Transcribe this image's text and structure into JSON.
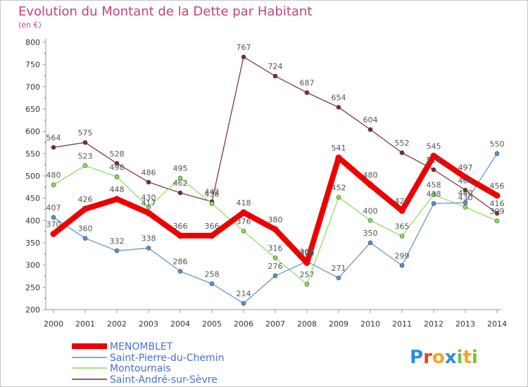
{
  "chart_data": {
    "type": "line",
    "title": "Evolution du Montant de la Dette par Habitant",
    "subtitle": "(en €)",
    "xlabel": "",
    "ylabel": "",
    "ylim": [
      200,
      800
    ],
    "yticks": [
      200,
      250,
      300,
      350,
      400,
      450,
      500,
      550,
      600,
      650,
      700,
      750,
      800
    ],
    "categories": [
      "2000",
      "2001",
      "2002",
      "2003",
      "2004",
      "2005",
      "2006",
      "2007",
      "2008",
      "2009",
      "2010",
      "2011",
      "2012",
      "2013",
      "2014"
    ],
    "grid": false,
    "legend_position": "bottom-left",
    "series": [
      {
        "name": "MENOMBLET",
        "color": "#ee0000",
        "values": [
          370,
          426,
          448,
          417,
          366,
          366,
          418,
          380,
          305,
          541,
          480,
          422,
          545,
          497,
          456
        ]
      },
      {
        "name": "Saint-Pierre-du-Chemin",
        "color": "#5a8fd0",
        "values": [
          407,
          360,
          332,
          338,
          286,
          258,
          214,
          276,
          308,
          271,
          350,
          299,
          438,
          440,
          550
        ]
      },
      {
        "name": "Montournais",
        "color": "#88dd55",
        "values": [
          480,
          523,
          498,
          430,
          495,
          438,
          376,
          316,
          257,
          452,
          400,
          365,
          458,
          430,
          399
        ]
      },
      {
        "name": "Saint-André-sur-Sèvre",
        "color": "#7a2a2a",
        "values": [
          564,
          575,
          528,
          486,
          462,
          442,
          767,
          724,
          687,
          654,
          604,
          552,
          514,
          468,
          416
        ]
      }
    ]
  },
  "logo": {
    "text": "Proxiti",
    "letters": [
      "P",
      "r",
      "o",
      "x",
      "i",
      "t",
      "i"
    ],
    "colors": [
      "#2b8fd6",
      "#e8421f",
      "#f5a623",
      "#2b8fd6",
      "#7bc043",
      "#f5a623",
      "#7bc043"
    ]
  }
}
